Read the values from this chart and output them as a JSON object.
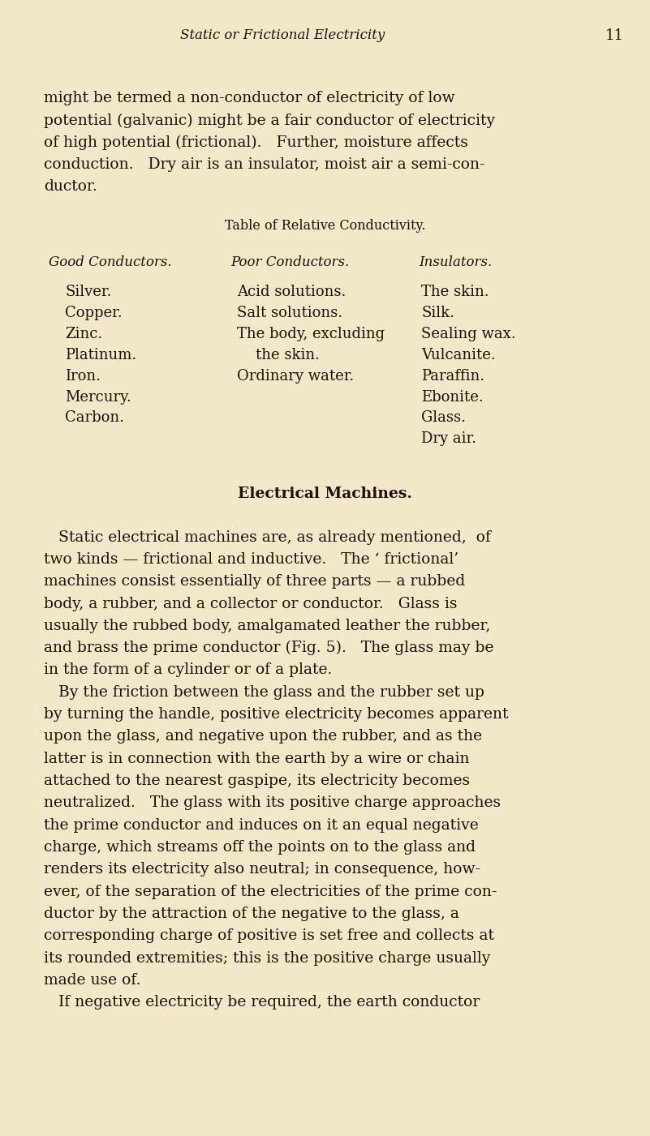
{
  "bg_color": "#f0e8c8",
  "text_color": "#1a1408",
  "page_width": 8.01,
  "page_height": 14.01,
  "header_italic": "Static or Frictional Electricity",
  "header_page_num": "11",
  "table_title": "Table of Relative Conductivity.",
  "col_headers": [
    "Good Conductors.",
    "Poor Conductors.",
    "Insulators."
  ],
  "col1": [
    "Silver.",
    "Copper.",
    "Zinc.",
    "Platinum.",
    "Iron.",
    "Mercury.",
    "Carbon."
  ],
  "col2": [
    "Acid solutions.",
    "Salt solutions.",
    "The body, excluding",
    "    the skin.",
    "Ordinary water.",
    "",
    ""
  ],
  "col3": [
    "The skin.",
    "Silk.",
    "Sealing wax.",
    "Vulcanite.",
    "Paraffin.",
    "Ebonite.",
    "Glass.",
    "Dry air."
  ],
  "section_heading": "Electrical Machines.",
  "intro_lines": [
    "might be termed a non-conductor of electricity of low",
    "potential (galvanic) might be a fair conductor of electricity",
    "of high potential (frictional).   Further, moisture affects",
    "conduction.   Dry air is an insulator, moist air a semi-con-",
    "ductor."
  ],
  "body_lines": [
    "   Static electrical machines are, as already mentioned,  of",
    "two kinds — frictional and inductive.   The ‘ frictional’",
    "machines consist essentially of three parts — a rubbed",
    "body, a rubber, and a collector or conductor.   Glass is",
    "usually the rubbed body, amalgamated leather the rubber,",
    "and brass the prime conductor (Fig. 5).   The glass may be",
    "in the form of a cylinder or of a plate.",
    "   By the friction between the glass and the rubber set up",
    "by turning the handle, positive electricity becomes apparent",
    "upon the glass, and negative upon the rubber, and as the",
    "latter is in connection with the earth by a wire or chain",
    "attached to the nearest gaspipe, its electricity becomes",
    "neutralized.   The glass with its positive charge approaches",
    "the prime conductor and induces on it an equal negative",
    "charge, which streams off the points on to the glass and",
    "renders its electricity also neutral; in consequence, how-",
    "ever, of the separation of the electricities of the prime con-",
    "ductor by the attraction of the negative to the glass, a",
    "corresponding charge of positive is set free and collects at",
    "its rounded extremities; this is the positive charge usually",
    "made use of.",
    "   If negative electricity be required, the earth conductor"
  ]
}
